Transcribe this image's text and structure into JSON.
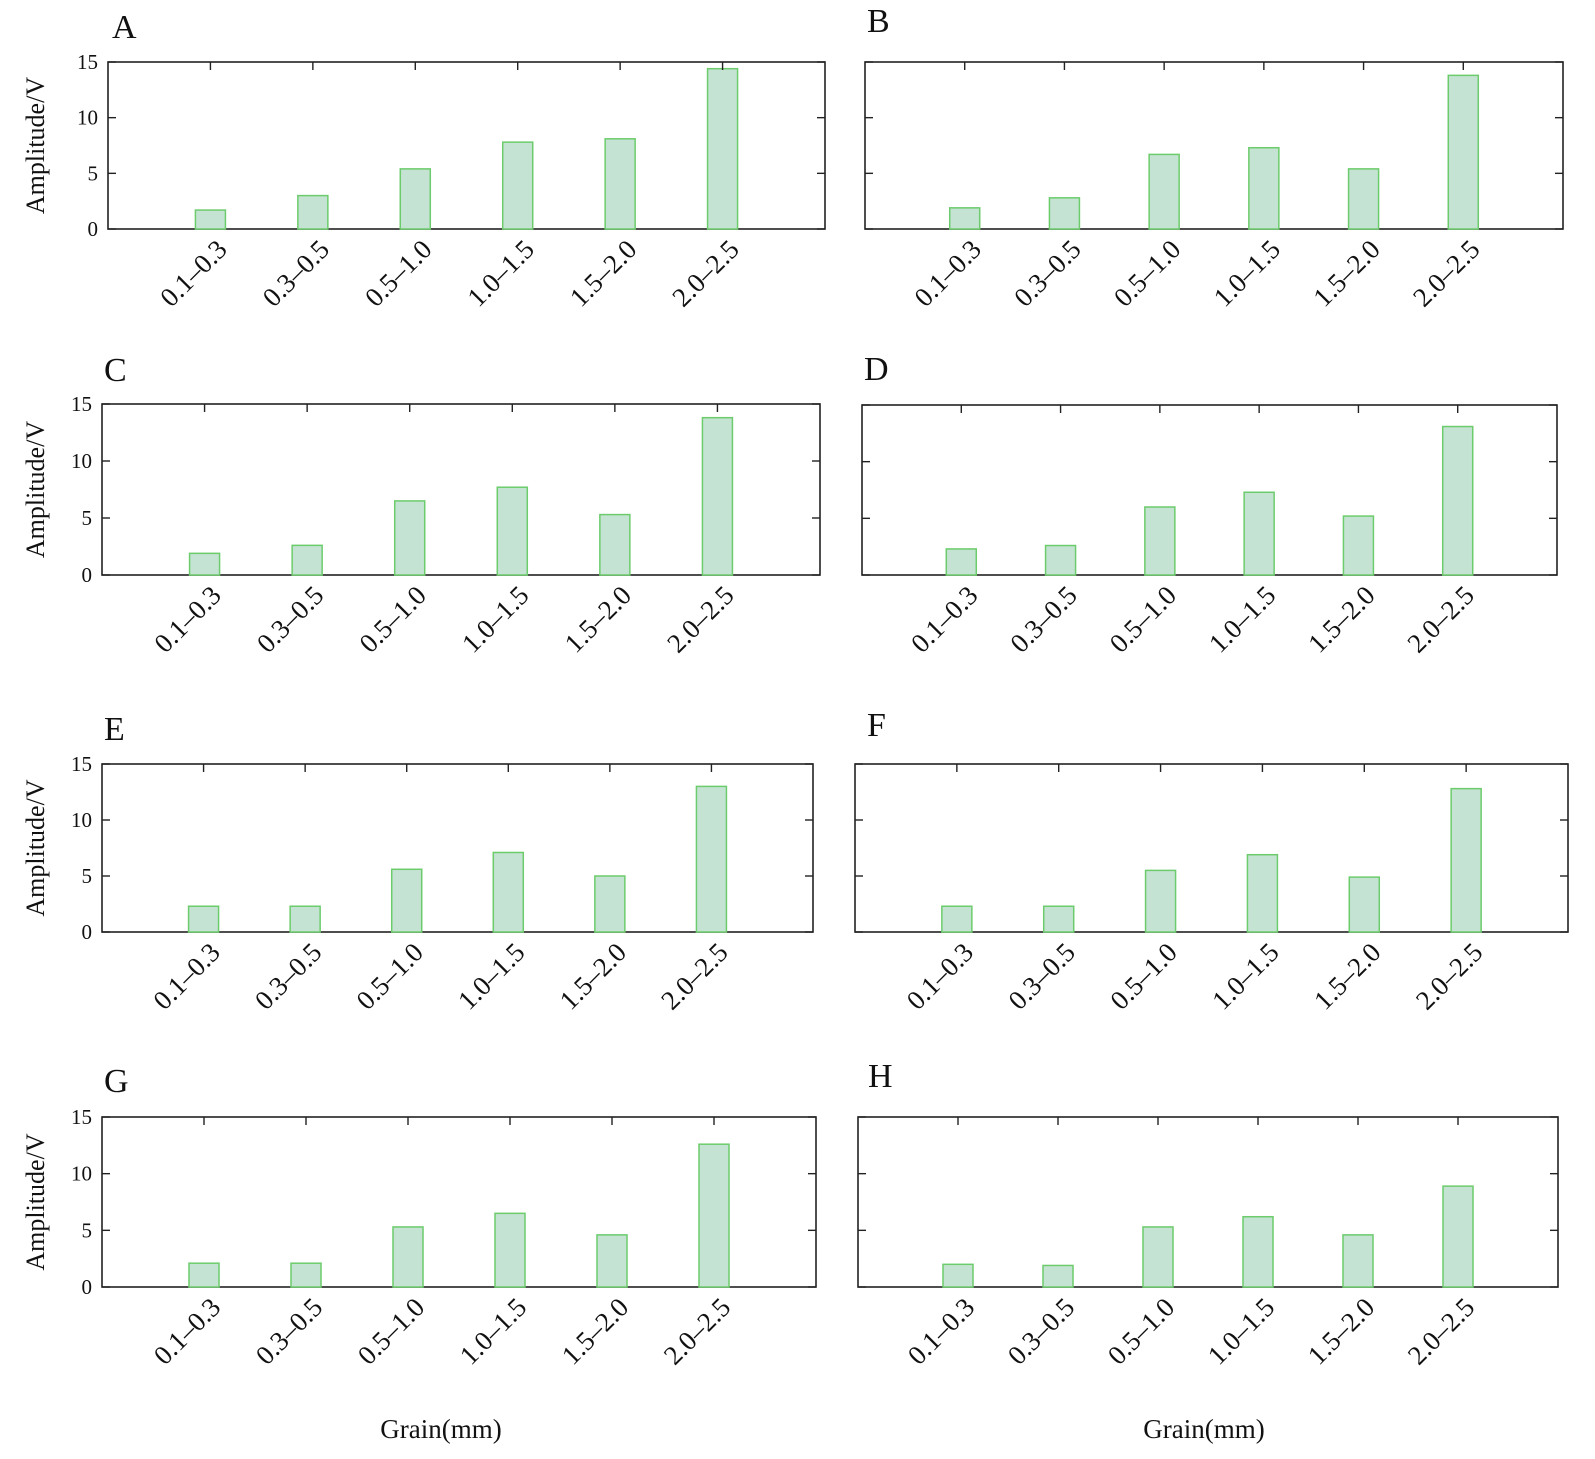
{
  "figure": {
    "shared_xlabel": "Grain(mm)",
    "shared_ylabel": "Amplitude/V",
    "bar_fill": "#c5e3d3",
    "bar_stroke": "#6ccc6c",
    "axis_color": "#222222"
  },
  "chart_data": [
    {
      "panel_label": "A",
      "type": "bar",
      "categories": [
        "0.1–0.3",
        "0.3–0.5",
        "0.5–1.0",
        "1.0–1.5",
        "1.5–2.0",
        "2.0–2.5"
      ],
      "values": [
        1.7,
        3.0,
        5.4,
        7.8,
        8.1,
        14.4
      ],
      "ylim": [
        0,
        15
      ],
      "yticks": [
        0,
        5,
        10,
        15
      ],
      "ylabel": "Amplitude/V",
      "xlabel": ""
    },
    {
      "panel_label": "B",
      "type": "bar",
      "categories": [
        "0.1–0.3",
        "0.3–0.5",
        "0.5–1.0",
        "1.0–1.5",
        "1.5–2.0",
        "2.0–2.5"
      ],
      "values": [
        1.9,
        2.8,
        6.7,
        7.3,
        5.4,
        13.8
      ],
      "ylim": [
        0,
        15
      ],
      "yticks": [],
      "ylabel": "",
      "xlabel": ""
    },
    {
      "panel_label": "C",
      "type": "bar",
      "categories": [
        "0.1–0.3",
        "0.3–0.5",
        "0.5–1.0",
        "1.0–1.5",
        "1.5–2.0",
        "2.0–2.5"
      ],
      "values": [
        1.9,
        2.6,
        6.5,
        7.7,
        5.3,
        13.8
      ],
      "ylim": [
        0,
        15
      ],
      "yticks": [
        0,
        5,
        10,
        15
      ],
      "ylabel": "Amplitude/V",
      "xlabel": ""
    },
    {
      "panel_label": "D",
      "type": "bar",
      "categories": [
        "0.1–0.3",
        "0.3–0.5",
        "0.5–1.0",
        "1.0–1.5",
        "1.5–2.0",
        "2.0–2.5"
      ],
      "values": [
        2.3,
        2.6,
        6.0,
        7.3,
        5.2,
        13.1
      ],
      "ylim": [
        0,
        15
      ],
      "yticks": [],
      "ylabel": "",
      "xlabel": ""
    },
    {
      "panel_label": "E",
      "type": "bar",
      "categories": [
        "0.1–0.3",
        "0.3–0.5",
        "0.5–1.0",
        "1.0–1.5",
        "1.5–2.0",
        "2.0–2.5"
      ],
      "values": [
        2.3,
        2.3,
        5.6,
        7.1,
        5.0,
        13.0
      ],
      "ylim": [
        0,
        15
      ],
      "yticks": [
        0,
        5,
        10,
        15
      ],
      "ylabel": "Amplitude/V",
      "xlabel": ""
    },
    {
      "panel_label": "F",
      "type": "bar",
      "categories": [
        "0.1–0.3",
        "0.3–0.5",
        "0.5–1.0",
        "1.0–1.5",
        "1.5–2.0",
        "2.0–2.5"
      ],
      "values": [
        2.3,
        2.3,
        5.5,
        6.9,
        4.9,
        12.8
      ],
      "ylim": [
        0,
        15
      ],
      "yticks": [],
      "ylabel": "",
      "xlabel": ""
    },
    {
      "panel_label": "G",
      "type": "bar",
      "categories": [
        "0.1–0.3",
        "0.3–0.5",
        "0.5–1.0",
        "1.0–1.5",
        "1.5–2.0",
        "2.0–2.5"
      ],
      "values": [
        2.1,
        2.1,
        5.3,
        6.5,
        4.6,
        12.6
      ],
      "ylim": [
        0,
        15
      ],
      "yticks": [
        0,
        5,
        10,
        15
      ],
      "ylabel": "Amplitude/V",
      "xlabel": "Grain(mm)"
    },
    {
      "panel_label": "H",
      "type": "bar",
      "categories": [
        "0.1–0.3",
        "0.3–0.5",
        "0.5–1.0",
        "1.0–1.5",
        "1.5–2.0",
        "2.0–2.5"
      ],
      "values": [
        2.0,
        1.9,
        5.3,
        6.2,
        4.6,
        8.9
      ],
      "ylim": [
        0,
        15
      ],
      "yticks": [],
      "ylabel": "",
      "xlabel": "Grain(mm)"
    }
  ]
}
